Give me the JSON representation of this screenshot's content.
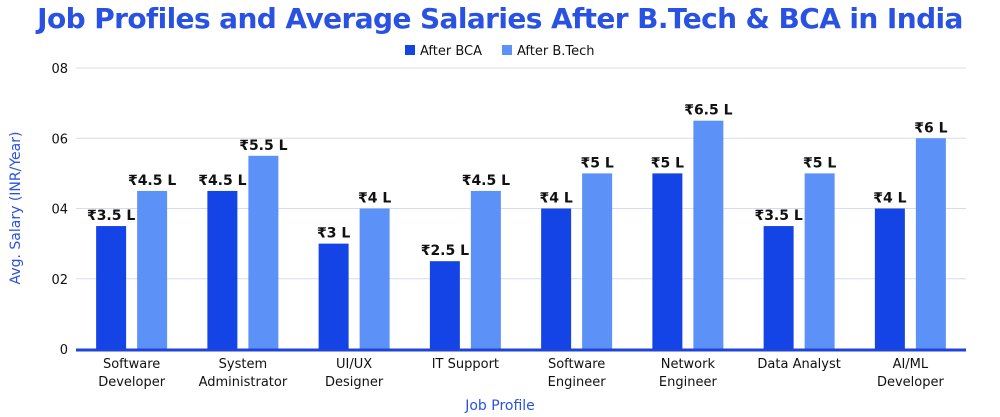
{
  "chart_data": {
    "type": "bar",
    "title": "Job Profiles and Average Salaries After B.Tech & BCA in India",
    "xlabel": "Job Profile",
    "ylabel": "Avg. Salary (INR/Year)",
    "ylim": [
      0,
      8
    ],
    "yticks": [
      "0",
      "02",
      "04",
      "06",
      "08"
    ],
    "grid": true,
    "legend_position": "top-center",
    "categories": [
      [
        "Software",
        "Developer"
      ],
      [
        "System",
        "Administrator"
      ],
      [
        "UI/UX",
        "Designer"
      ],
      [
        "IT Support"
      ],
      [
        "Software",
        "Engineer"
      ],
      [
        "Network",
        "Engineer"
      ],
      [
        "Data Analyst"
      ],
      [
        "AI/ML",
        "Developer"
      ]
    ],
    "series": [
      {
        "name": "After BCA",
        "color": "#1544e6",
        "values": [
          3.5,
          4.5,
          3,
          2.5,
          4,
          5,
          3.5,
          4
        ],
        "labels": [
          "₹3.5 L",
          "₹4.5 L",
          "₹3 L",
          "₹2.5 L",
          "₹4 L",
          "₹5 L",
          "₹3.5 L",
          "₹4 L"
        ]
      },
      {
        "name": "After B.Tech",
        "color": "#5c92f7",
        "values": [
          4.5,
          5.5,
          4,
          4.5,
          5,
          6.5,
          5,
          6
        ],
        "labels": [
          "₹4.5 L",
          "₹5.5 L",
          "₹4 L",
          "₹4.5 L",
          "₹5 L",
          "₹6.5 L",
          "₹5 L",
          "₹6 L"
        ]
      }
    ]
  }
}
